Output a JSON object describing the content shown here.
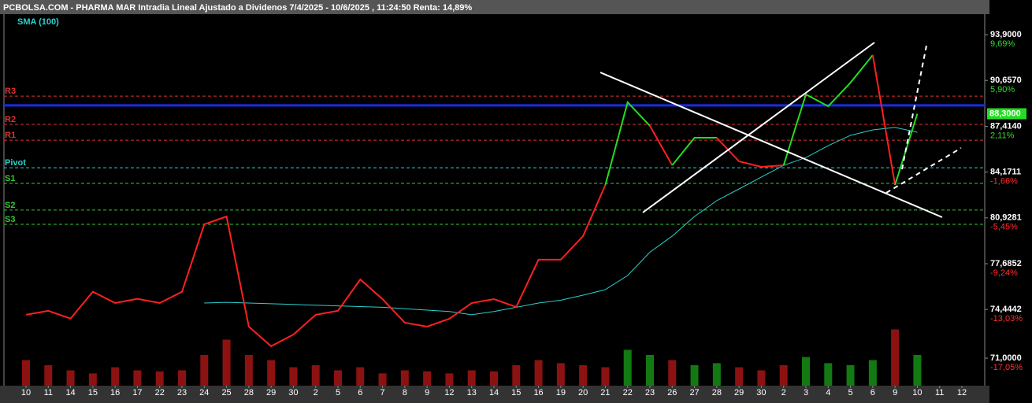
{
  "chart_data": {
    "type": "line",
    "title": "PCBOLSA.COM - PHARMA MAR Intradia Lineal Ajustado a Dividenos 7/4/2025 - 10/6/2025 , 11:24:50 Renta: 14,89%",
    "categories": [
      "10",
      "11",
      "14",
      "15",
      "16",
      "17",
      "22",
      "23",
      "24",
      "25",
      "28",
      "29",
      "30",
      "2",
      "5",
      "6",
      "7",
      "8",
      "9",
      "12",
      "13",
      "14",
      "15",
      "16",
      "19",
      "20",
      "21",
      "22",
      "23",
      "26",
      "27",
      "28",
      "29",
      "30",
      "2",
      "3",
      "4",
      "5",
      "6",
      "9",
      "10",
      "11",
      "12"
    ],
    "series": [
      {
        "values": [
          74.07,
          74.35,
          73.8,
          75.7,
          74.9,
          75.2,
          74.9,
          75.7,
          80.47,
          81.03,
          73.23,
          71.84,
          72.67,
          74.07,
          74.35,
          76.57,
          75.18,
          73.51,
          73.23,
          73.79,
          74.9,
          75.18,
          74.62,
          77.97,
          77.97,
          79.64,
          83.26,
          89.11,
          87.44,
          84.65,
          86.6,
          86.6,
          84.93,
          84.54,
          84.65,
          89.67,
          88.83,
          90.5,
          92.45,
          83.26,
          88.3,
          null,
          null
        ],
        "colors": [
          "#ff2020",
          "#ff2020",
          "#ff2020",
          "#ff2020",
          "#ff2020",
          "#ff2020",
          "#ff2020",
          "#ff2020",
          "#ff2020",
          "#ff2020",
          "#ff2020",
          "#ff2020",
          "#ff2020",
          "#ff2020",
          "#ff2020",
          "#ff2020",
          "#ff2020",
          "#ff2020",
          "#ff2020",
          "#ff2020",
          "#ff2020",
          "#ff2020",
          "#ff2020",
          "#ff2020",
          "#ff2020",
          "#ff2020",
          "#ff2020",
          "#22dd22",
          "#22dd22",
          "#ff2020",
          "#22dd22",
          "#22dd22",
          "#ff2020",
          "#ff2020",
          "#ff2020",
          "#22dd22",
          "#22dd22",
          "#22dd22",
          "#22dd22",
          "#ff2020",
          "#22dd22",
          "#22dd22",
          "#22dd22"
        ]
      },
      {
        "name": "SMA (100)",
        "color": "#2ccfcf",
        "values": [
          null,
          null,
          null,
          null,
          null,
          null,
          null,
          null,
          74.9,
          74.95,
          74.9,
          74.85,
          74.8,
          74.75,
          74.7,
          74.65,
          74.6,
          74.5,
          74.4,
          74.3,
          74.07,
          74.3,
          74.6,
          74.9,
          75.1,
          75.46,
          75.85,
          76.85,
          78.5,
          79.64,
          81.03,
          82.15,
          82.98,
          83.82,
          84.65,
          85.2,
          86.04,
          86.77,
          87.16,
          87.33,
          86.99,
          null,
          null
        ]
      }
    ],
    "ylim": [
      69.05,
      95.35
    ],
    "yticks": [
      {
        "value": 93.9,
        "label": "93,9000"
      },
      {
        "value": 90.657,
        "label": "90,6570"
      },
      {
        "value": 87.414,
        "label": "87,4140"
      },
      {
        "value": 84.1711,
        "label": "84,1711"
      },
      {
        "value": 80.9281,
        "label": "80,9281"
      },
      {
        "value": 77.6852,
        "label": "77,6852"
      },
      {
        "value": 74.4442,
        "label": "74,4442"
      },
      {
        "value": 71,
        "label": "71,0000"
      }
    ],
    "y_pct_labels": [
      {
        "label": "9,69%",
        "color": "#33dd33"
      },
      {
        "label": "5,90%",
        "color": "#33dd33"
      },
      {
        "label": "2,11%",
        "color": "#33dd33"
      },
      {
        "label": "-1,66%",
        "color": "#ff3030"
      },
      {
        "label": "-5,45%",
        "color": "#ff3030"
      },
      {
        "label": "-9,24%",
        "color": "#ff3030"
      },
      {
        "label": "-13,03%",
        "color": "#ff3030"
      },
      {
        "label": "-17,05%",
        "color": "#ff3030"
      }
    ],
    "levels": [
      {
        "label": "R3",
        "value": 89.55,
        "color": "#e03030"
      },
      {
        "label": "R2",
        "value": 87.55,
        "color": "#e03030"
      },
      {
        "label": "R1",
        "value": 86.43,
        "color": "#e03030"
      },
      {
        "label": "Pivot",
        "value": 84.48,
        "color": "#2ccfcf"
      },
      {
        "label": "S1",
        "value": 83.37,
        "color": "#33cc33"
      },
      {
        "label": "S2",
        "value": 81.48,
        "color": "#33cc33"
      },
      {
        "label": "S3",
        "value": 80.47,
        "color": "#33cc33"
      }
    ],
    "blue_line": {
      "value": 88.89,
      "color": "#1a2ae8"
    },
    "last_price": {
      "value": 88.3,
      "label": "88,3000"
    },
    "volume": [
      25,
      20,
      15,
      12,
      18,
      15,
      14,
      15,
      30,
      45,
      30,
      25,
      18,
      20,
      15,
      18,
      12,
      15,
      14,
      12,
      15,
      14,
      20,
      25,
      22,
      20,
      18,
      35,
      30,
      25,
      20,
      22,
      18,
      15,
      20,
      28,
      22,
      20,
      25,
      55,
      30,
      null,
      null
    ],
    "volume_lim": [
      0,
      100
    ]
  }
}
